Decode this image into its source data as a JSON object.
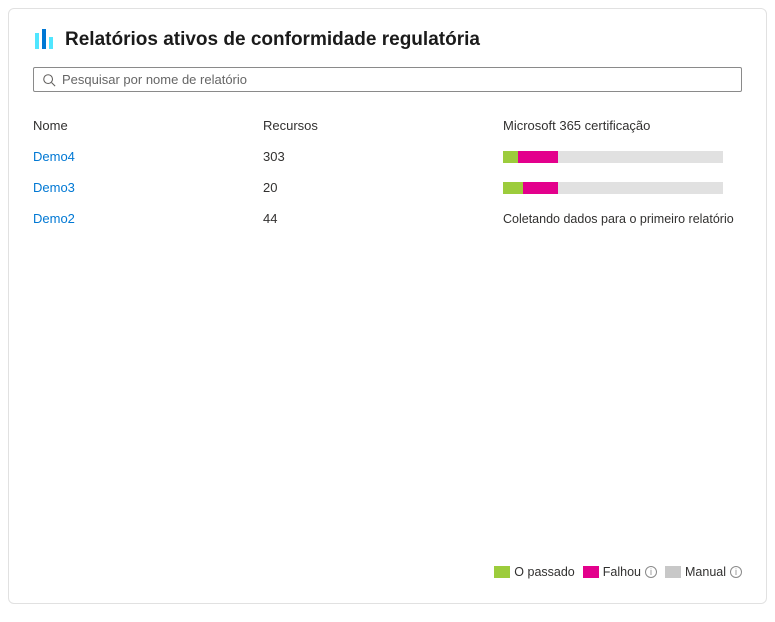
{
  "header": {
    "title": "Relatórios ativos de conformidade regulatória",
    "icon_colors": {
      "bar1": "#50e6ff",
      "bar2": "#0078d4",
      "bar3": "#50e6ff"
    }
  },
  "search": {
    "placeholder": "Pesquisar por nome de relatório"
  },
  "table": {
    "columns": {
      "name": "Nome",
      "resources": "Recursos",
      "cert": "Microsoft 365 certificação"
    },
    "rows": [
      {
        "name": "Demo4",
        "resources": "303",
        "cert_type": "bar",
        "segments": [
          {
            "color": "#9ccc3c",
            "width_pct": 7
          },
          {
            "color": "#e3008c",
            "width_pct": 18
          }
        ],
        "track_color": "#e1e1e1"
      },
      {
        "name": "Demo3",
        "resources": "20",
        "cert_type": "bar",
        "segments": [
          {
            "color": "#9ccc3c",
            "width_pct": 9
          },
          {
            "color": "#e3008c",
            "width_pct": 16
          }
        ],
        "track_color": "#e1e1e1"
      },
      {
        "name": "Demo2",
        "resources": "44",
        "cert_type": "text",
        "cert_text": "Coletando dados para o primeiro relatório"
      }
    ]
  },
  "legend": {
    "items": [
      {
        "label": "O passado",
        "color": "#9ccc3c",
        "info": false
      },
      {
        "label": "Falhou",
        "color": "#e3008c",
        "info": true
      },
      {
        "label": "Manual",
        "color": "#c8c8c8",
        "info": true
      }
    ]
  }
}
